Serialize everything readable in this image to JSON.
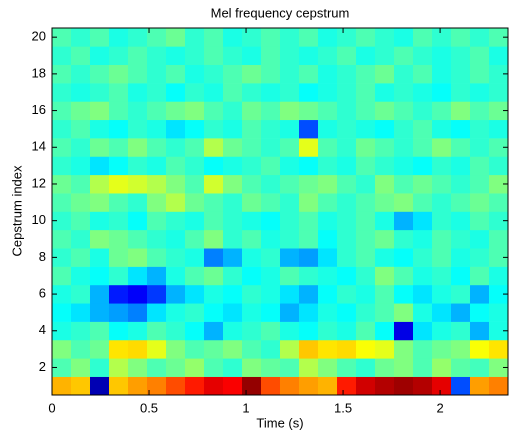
{
  "chart_data": {
    "type": "heatmap",
    "title": "Mel frequency cepstrum",
    "x_label": "Time (s)",
    "y_label": "Cepstrum index",
    "colormap": "jet",
    "xlim": [
      0,
      2.35
    ],
    "ylim": [
      0.5,
      20.5
    ],
    "xticks": [
      0,
      0.5,
      1,
      1.5,
      2
    ],
    "yticks": [
      2,
      4,
      6,
      8,
      10,
      12,
      14,
      16,
      18,
      20
    ],
    "y": [
      1,
      2,
      3,
      4,
      5,
      6,
      7,
      8,
      9,
      10,
      11,
      12,
      13,
      14,
      15,
      16,
      17,
      18,
      19,
      20
    ],
    "z": [
      [
        0.7,
        0.68,
        0.05,
        0.68,
        0.72,
        0.75,
        0.8,
        0.85,
        0.9,
        0.88,
        0.98,
        0.8,
        0.75,
        0.72,
        0.7,
        0.85,
        0.92,
        0.95,
        0.97,
        0.95,
        0.9,
        0.2,
        0.72,
        0.75
      ],
      [
        0.45,
        0.5,
        0.42,
        0.55,
        0.5,
        0.45,
        0.48,
        0.52,
        0.45,
        0.42,
        0.5,
        0.47,
        0.45,
        0.55,
        0.5,
        0.45,
        0.42,
        0.48,
        0.5,
        0.45,
        0.52,
        0.46,
        0.44,
        0.5
      ],
      [
        0.5,
        0.45,
        0.48,
        0.65,
        0.66,
        0.6,
        0.5,
        0.45,
        0.47,
        0.5,
        0.45,
        0.42,
        0.55,
        0.68,
        0.65,
        0.66,
        0.62,
        0.6,
        0.5,
        0.45,
        0.48,
        0.5,
        0.62,
        0.65
      ],
      [
        0.4,
        0.42,
        0.45,
        0.38,
        0.4,
        0.45,
        0.42,
        0.38,
        0.3,
        0.4,
        0.42,
        0.45,
        0.4,
        0.38,
        0.42,
        0.4,
        0.45,
        0.38,
        0.1,
        0.35,
        0.4,
        0.42,
        0.3,
        0.4
      ],
      [
        0.38,
        0.35,
        0.3,
        0.28,
        0.25,
        0.35,
        0.4,
        0.42,
        0.38,
        0.35,
        0.4,
        0.38,
        0.3,
        0.35,
        0.4,
        0.38,
        0.42,
        0.45,
        0.5,
        0.4,
        0.35,
        0.3,
        0.38,
        0.4
      ],
      [
        0.4,
        0.42,
        0.3,
        0.15,
        0.12,
        0.18,
        0.3,
        0.35,
        0.4,
        0.38,
        0.42,
        0.4,
        0.35,
        0.3,
        0.38,
        0.42,
        0.4,
        0.45,
        0.38,
        0.35,
        0.4,
        0.42,
        0.3,
        0.38
      ],
      [
        0.45,
        0.4,
        0.38,
        0.42,
        0.35,
        0.3,
        0.4,
        0.45,
        0.48,
        0.42,
        0.38,
        0.4,
        0.45,
        0.42,
        0.4,
        0.38,
        0.42,
        0.5,
        0.45,
        0.4,
        0.42,
        0.38,
        0.45,
        0.4
      ],
      [
        0.42,
        0.45,
        0.4,
        0.48,
        0.5,
        0.45,
        0.42,
        0.4,
        0.25,
        0.3,
        0.4,
        0.42,
        0.3,
        0.28,
        0.35,
        0.42,
        0.45,
        0.4,
        0.38,
        0.42,
        0.45,
        0.4,
        0.42,
        0.45
      ],
      [
        0.45,
        0.42,
        0.5,
        0.48,
        0.45,
        0.42,
        0.4,
        0.45,
        0.5,
        0.42,
        0.45,
        0.4,
        0.42,
        0.45,
        0.38,
        0.42,
        0.45,
        0.48,
        0.42,
        0.4,
        0.45,
        0.42,
        0.4,
        0.45
      ],
      [
        0.42,
        0.45,
        0.4,
        0.42,
        0.38,
        0.45,
        0.42,
        0.4,
        0.45,
        0.42,
        0.4,
        0.38,
        0.42,
        0.45,
        0.4,
        0.42,
        0.45,
        0.4,
        0.3,
        0.35,
        0.42,
        0.4,
        0.45,
        0.42
      ],
      [
        0.45,
        0.48,
        0.5,
        0.45,
        0.42,
        0.5,
        0.55,
        0.48,
        0.45,
        0.42,
        0.48,
        0.45,
        0.42,
        0.5,
        0.45,
        0.42,
        0.45,
        0.48,
        0.5,
        0.45,
        0.42,
        0.45,
        0.48,
        0.45
      ],
      [
        0.48,
        0.45,
        0.55,
        0.6,
        0.58,
        0.55,
        0.5,
        0.45,
        0.58,
        0.5,
        0.45,
        0.42,
        0.45,
        0.48,
        0.5,
        0.45,
        0.42,
        0.5,
        0.45,
        0.48,
        0.45,
        0.42,
        0.45,
        0.5
      ],
      [
        0.42,
        0.4,
        0.35,
        0.38,
        0.42,
        0.4,
        0.45,
        0.42,
        0.38,
        0.4,
        0.42,
        0.45,
        0.4,
        0.38,
        0.42,
        0.4,
        0.45,
        0.42,
        0.4,
        0.38,
        0.42,
        0.4,
        0.45,
        0.42
      ],
      [
        0.45,
        0.42,
        0.48,
        0.45,
        0.5,
        0.45,
        0.42,
        0.45,
        0.55,
        0.48,
        0.45,
        0.42,
        0.45,
        0.6,
        0.45,
        0.42,
        0.48,
        0.45,
        0.42,
        0.45,
        0.5,
        0.45,
        0.42,
        0.45
      ],
      [
        0.42,
        0.45,
        0.4,
        0.38,
        0.42,
        0.4,
        0.35,
        0.38,
        0.42,
        0.4,
        0.45,
        0.42,
        0.4,
        0.2,
        0.4,
        0.42,
        0.4,
        0.38,
        0.42,
        0.45,
        0.4,
        0.38,
        0.42,
        0.4
      ],
      [
        0.45,
        0.48,
        0.5,
        0.45,
        0.42,
        0.45,
        0.48,
        0.5,
        0.45,
        0.42,
        0.48,
        0.45,
        0.5,
        0.48,
        0.45,
        0.42,
        0.45,
        0.48,
        0.45,
        0.42,
        0.45,
        0.5,
        0.45,
        0.48
      ],
      [
        0.42,
        0.4,
        0.42,
        0.45,
        0.4,
        0.42,
        0.38,
        0.42,
        0.4,
        0.45,
        0.42,
        0.4,
        0.42,
        0.38,
        0.4,
        0.42,
        0.45,
        0.4,
        0.42,
        0.4,
        0.38,
        0.42,
        0.4,
        0.42
      ],
      [
        0.45,
        0.42,
        0.45,
        0.48,
        0.45,
        0.42,
        0.45,
        0.4,
        0.42,
        0.45,
        0.48,
        0.45,
        0.42,
        0.45,
        0.4,
        0.42,
        0.45,
        0.48,
        0.42,
        0.45,
        0.4,
        0.42,
        0.45,
        0.42
      ],
      [
        0.42,
        0.45,
        0.4,
        0.42,
        0.45,
        0.42,
        0.4,
        0.42,
        0.45,
        0.42,
        0.4,
        0.45,
        0.42,
        0.4,
        0.42,
        0.45,
        0.4,
        0.42,
        0.45,
        0.42,
        0.4,
        0.42,
        0.45,
        0.4
      ],
      [
        0.45,
        0.42,
        0.45,
        0.4,
        0.42,
        0.45,
        0.48,
        0.42,
        0.45,
        0.4,
        0.42,
        0.45,
        0.42,
        0.45,
        0.4,
        0.42,
        0.45,
        0.42,
        0.4,
        0.45,
        0.42,
        0.45,
        0.42,
        0.45
      ]
    ]
  }
}
